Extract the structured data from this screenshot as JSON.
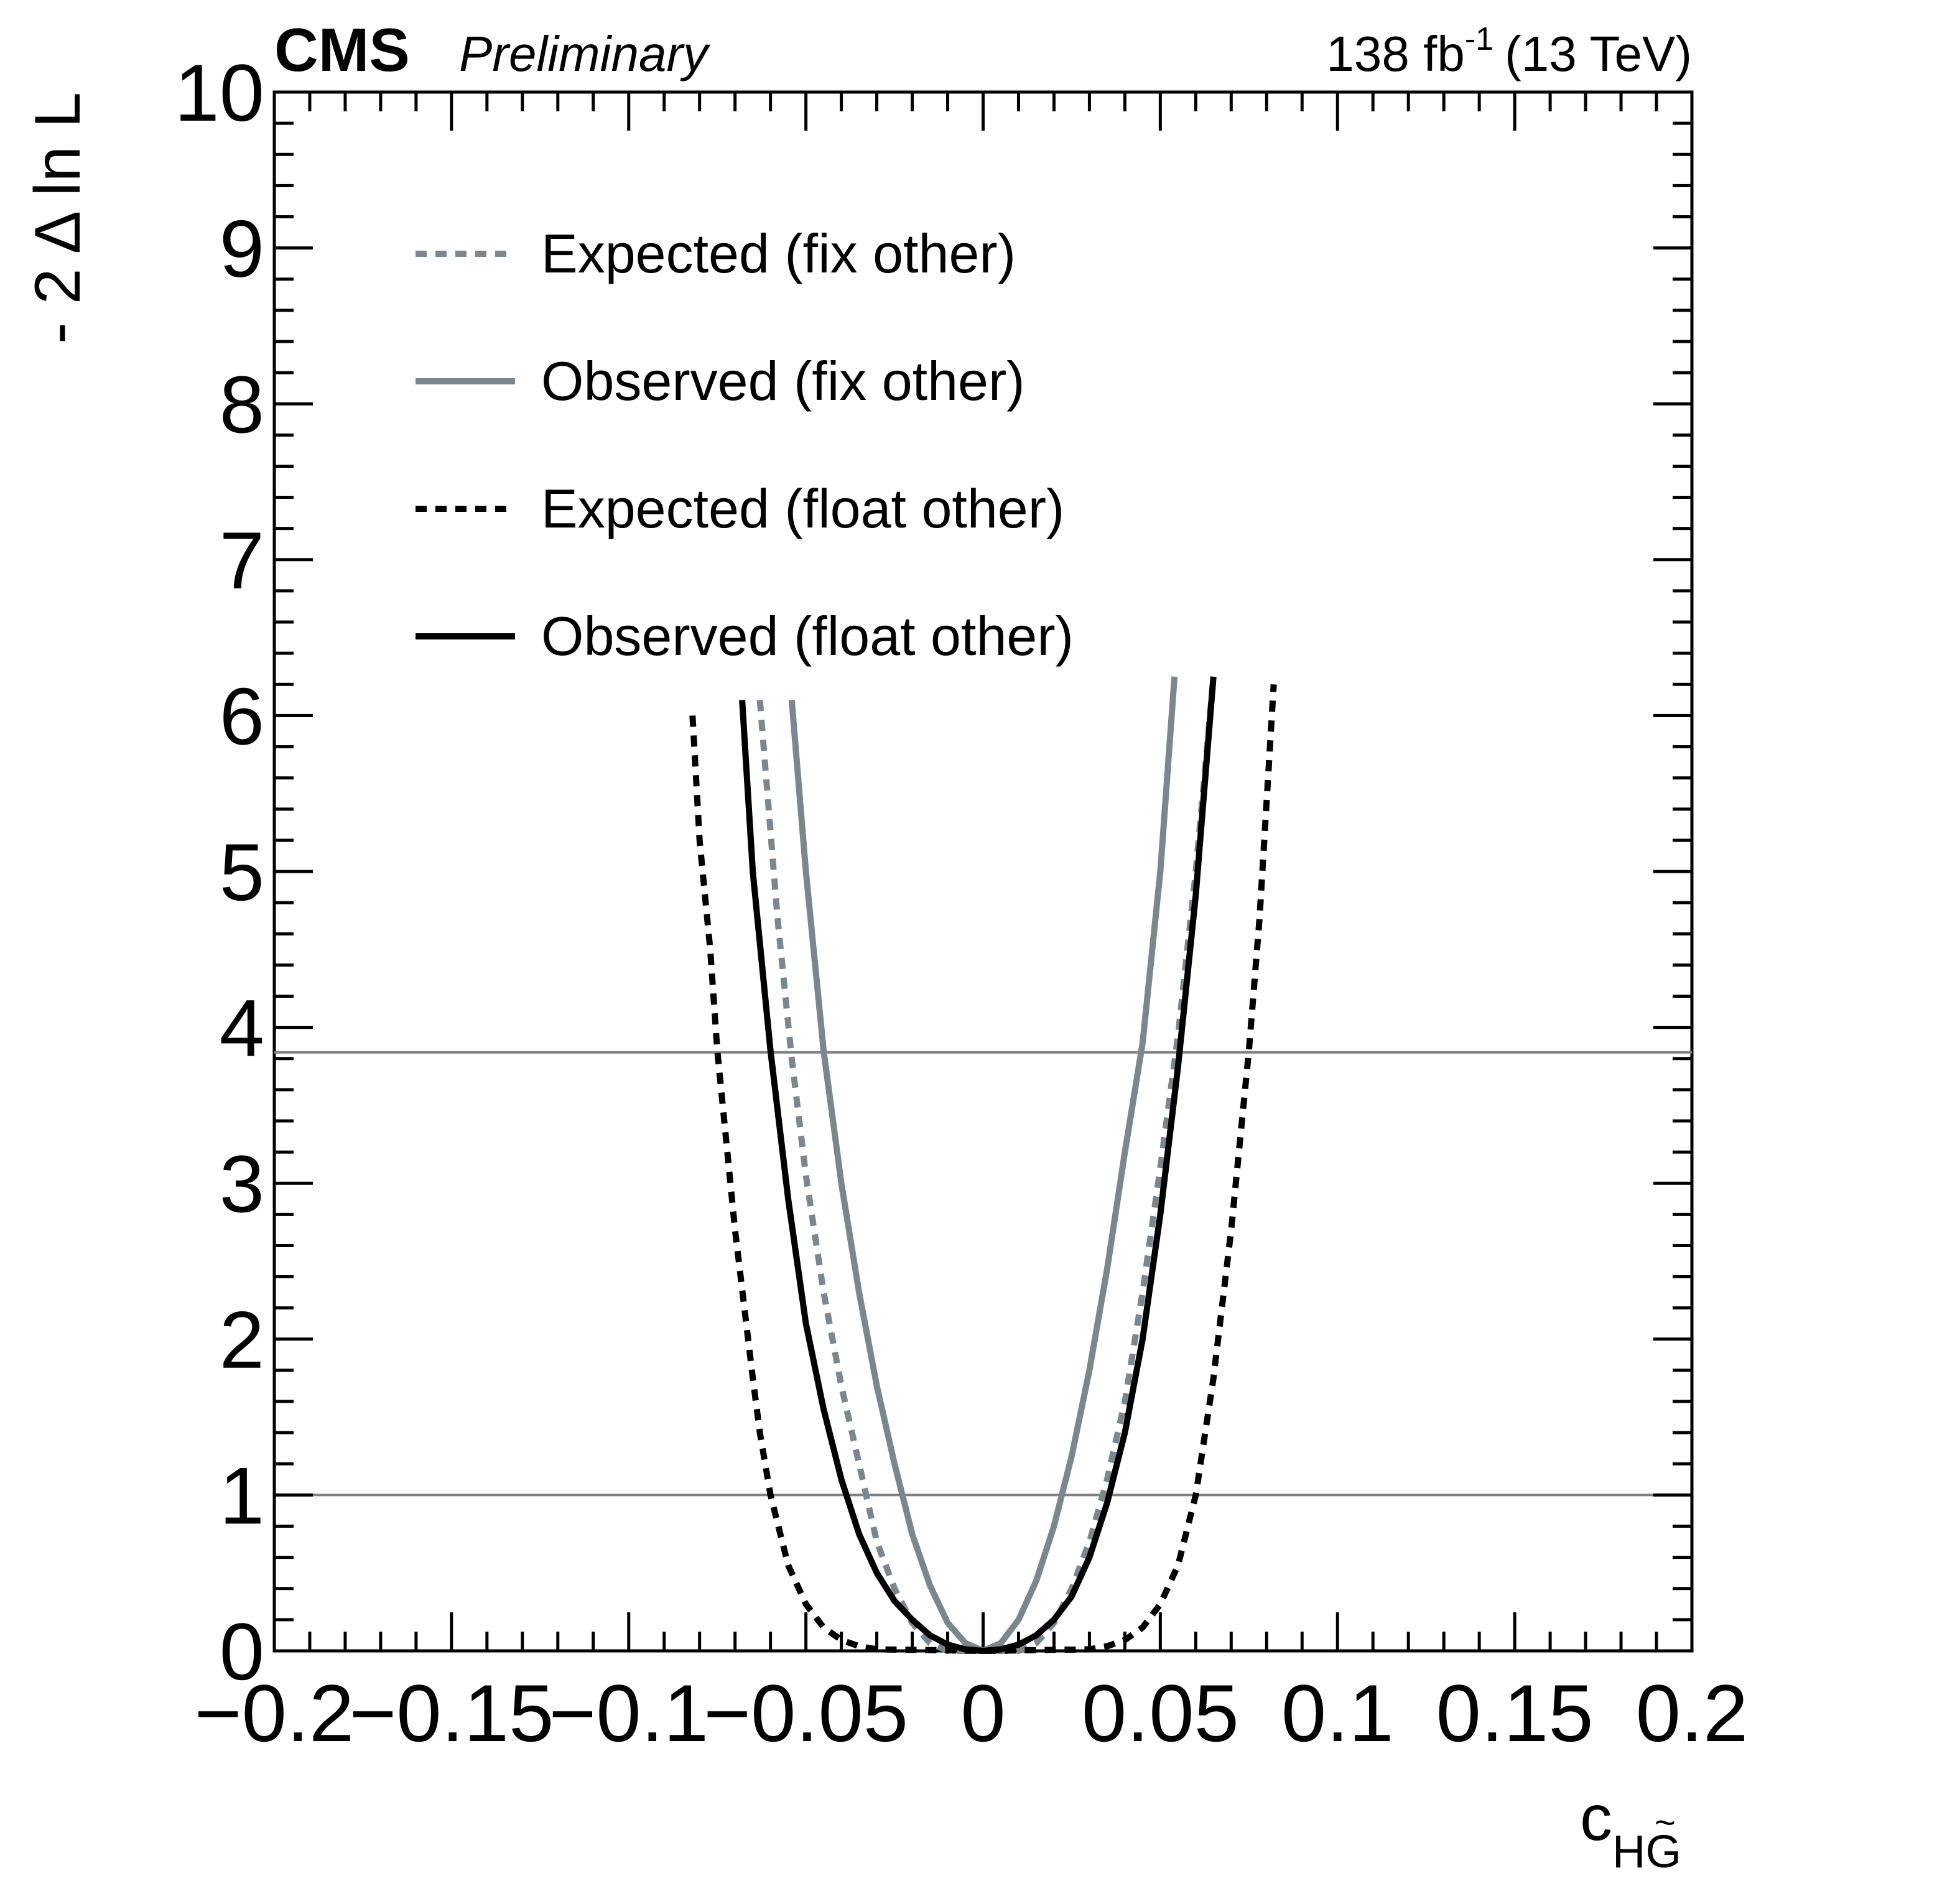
{
  "header": {
    "experiment": "CMS",
    "status": "Preliminary",
    "lumi": "138 fb",
    "lumi_exp": "-1",
    "energy": "(13 TeV)"
  },
  "chart_data": {
    "type": "line",
    "xlabel_main": "c",
    "xlabel_sub": "HG",
    "xlabel_accent": "~",
    "ylabel": "- 2 Δ ln L",
    "xlim": [
      -0.2,
      0.2
    ],
    "ylim": [
      0,
      10
    ],
    "x_ticks": [
      {
        "value": -0.2,
        "label": "−0.2"
      },
      {
        "value": -0.15,
        "label": "−0.15"
      },
      {
        "value": -0.1,
        "label": "−0.1"
      },
      {
        "value": -0.05,
        "label": "−0.05"
      },
      {
        "value": 0,
        "label": "0"
      },
      {
        "value": 0.05,
        "label": "0.05"
      },
      {
        "value": 0.1,
        "label": "0.1"
      },
      {
        "value": 0.15,
        "label": "0.15"
      },
      {
        "value": 0.2,
        "label": "0.2"
      }
    ],
    "y_ticks": [
      {
        "value": 0,
        "label": "0"
      },
      {
        "value": 1,
        "label": "1"
      },
      {
        "value": 2,
        "label": "2"
      },
      {
        "value": 3,
        "label": "3"
      },
      {
        "value": 4,
        "label": "4"
      },
      {
        "value": 5,
        "label": "5"
      },
      {
        "value": 6,
        "label": "6"
      },
      {
        "value": 7,
        "label": "7"
      },
      {
        "value": 8,
        "label": "8"
      },
      {
        "value": 9,
        "label": "9"
      },
      {
        "value": 10,
        "label": "10"
      }
    ],
    "reference_lines": [
      1,
      3.84
    ],
    "legend_position": "top-left",
    "series": [
      {
        "name": "Expected (fix other)",
        "color": "#7a878f",
        "dash": "dotted",
        "points": [
          [
            -0.063,
            6.1
          ],
          [
            -0.058,
            4.7
          ],
          [
            -0.054,
            3.8
          ],
          [
            -0.05,
            3.05
          ],
          [
            -0.045,
            2.3
          ],
          [
            -0.04,
            1.7
          ],
          [
            -0.035,
            1.2
          ],
          [
            -0.03,
            0.7
          ],
          [
            -0.025,
            0.4
          ],
          [
            -0.02,
            0.18
          ],
          [
            -0.015,
            0.05
          ],
          [
            -0.01,
            0.0
          ],
          [
            0,
            0
          ],
          [
            0.01,
            0.0
          ],
          [
            0.015,
            0.05
          ],
          [
            0.02,
            0.18
          ],
          [
            0.025,
            0.4
          ],
          [
            0.03,
            0.7
          ],
          [
            0.035,
            1.1
          ],
          [
            0.04,
            1.6
          ],
          [
            0.045,
            2.3
          ],
          [
            0.05,
            3.1
          ],
          [
            0.055,
            3.95
          ],
          [
            0.06,
            5.0
          ],
          [
            0.065,
            6.25
          ]
        ]
      },
      {
        "name": "Observed (fix other)",
        "color": "#7a878f",
        "dash": "solid",
        "points": [
          [
            -0.054,
            6.1
          ],
          [
            -0.05,
            5.0
          ],
          [
            -0.045,
            3.85
          ],
          [
            -0.04,
            3.0
          ],
          [
            -0.035,
            2.3
          ],
          [
            -0.03,
            1.7
          ],
          [
            -0.025,
            1.2
          ],
          [
            -0.02,
            0.75
          ],
          [
            -0.015,
            0.42
          ],
          [
            -0.01,
            0.18
          ],
          [
            -0.005,
            0.05
          ],
          [
            0,
            0
          ],
          [
            0.005,
            0.05
          ],
          [
            0.01,
            0.2
          ],
          [
            0.015,
            0.45
          ],
          [
            0.02,
            0.8
          ],
          [
            0.025,
            1.25
          ],
          [
            0.03,
            1.8
          ],
          [
            0.035,
            2.45
          ],
          [
            0.04,
            3.2
          ],
          [
            0.045,
            3.9
          ],
          [
            0.05,
            5.0
          ],
          [
            0.054,
            6.25
          ]
        ]
      },
      {
        "name": "Expected (float other)",
        "color": "#000000",
        "dash": "dotted",
        "points": [
          [
            -0.082,
            6.0
          ],
          [
            -0.08,
            5.2
          ],
          [
            -0.077,
            4.5
          ],
          [
            -0.075,
            3.85
          ],
          [
            -0.07,
            2.7
          ],
          [
            -0.065,
            1.75
          ],
          [
            -0.063,
            1.4
          ],
          [
            -0.06,
            1.0
          ],
          [
            -0.055,
            0.55
          ],
          [
            -0.05,
            0.3
          ],
          [
            -0.045,
            0.15
          ],
          [
            -0.04,
            0.07
          ],
          [
            -0.035,
            0.03
          ],
          [
            -0.03,
            0.01
          ],
          [
            0,
            0
          ],
          [
            0.03,
            0.01
          ],
          [
            0.035,
            0.03
          ],
          [
            0.04,
            0.07
          ],
          [
            0.045,
            0.15
          ],
          [
            0.05,
            0.3
          ],
          [
            0.055,
            0.55
          ],
          [
            0.06,
            1.0
          ],
          [
            0.065,
            1.75
          ],
          [
            0.07,
            2.7
          ],
          [
            0.075,
            3.85
          ],
          [
            0.078,
            4.7
          ],
          [
            0.082,
            6.2
          ]
        ]
      },
      {
        "name": "Observed (float other)",
        "color": "#000000",
        "dash": "solid",
        "points": [
          [
            -0.068,
            6.1
          ],
          [
            -0.065,
            5.0
          ],
          [
            -0.06,
            3.85
          ],
          [
            -0.055,
            2.9
          ],
          [
            -0.05,
            2.1
          ],
          [
            -0.045,
            1.55
          ],
          [
            -0.04,
            1.1
          ],
          [
            -0.035,
            0.75
          ],
          [
            -0.03,
            0.5
          ],
          [
            -0.025,
            0.32
          ],
          [
            -0.02,
            0.2
          ],
          [
            -0.015,
            0.1
          ],
          [
            -0.01,
            0.04
          ],
          [
            -0.005,
            0.01
          ],
          [
            0,
            0
          ],
          [
            0.005,
            0.01
          ],
          [
            0.01,
            0.04
          ],
          [
            0.015,
            0.1
          ],
          [
            0.02,
            0.2
          ],
          [
            0.025,
            0.35
          ],
          [
            0.03,
            0.6
          ],
          [
            0.035,
            0.95
          ],
          [
            0.04,
            1.4
          ],
          [
            0.045,
            2.0
          ],
          [
            0.05,
            2.8
          ],
          [
            0.055,
            3.75
          ],
          [
            0.06,
            4.85
          ],
          [
            0.065,
            6.25
          ]
        ]
      }
    ]
  }
}
